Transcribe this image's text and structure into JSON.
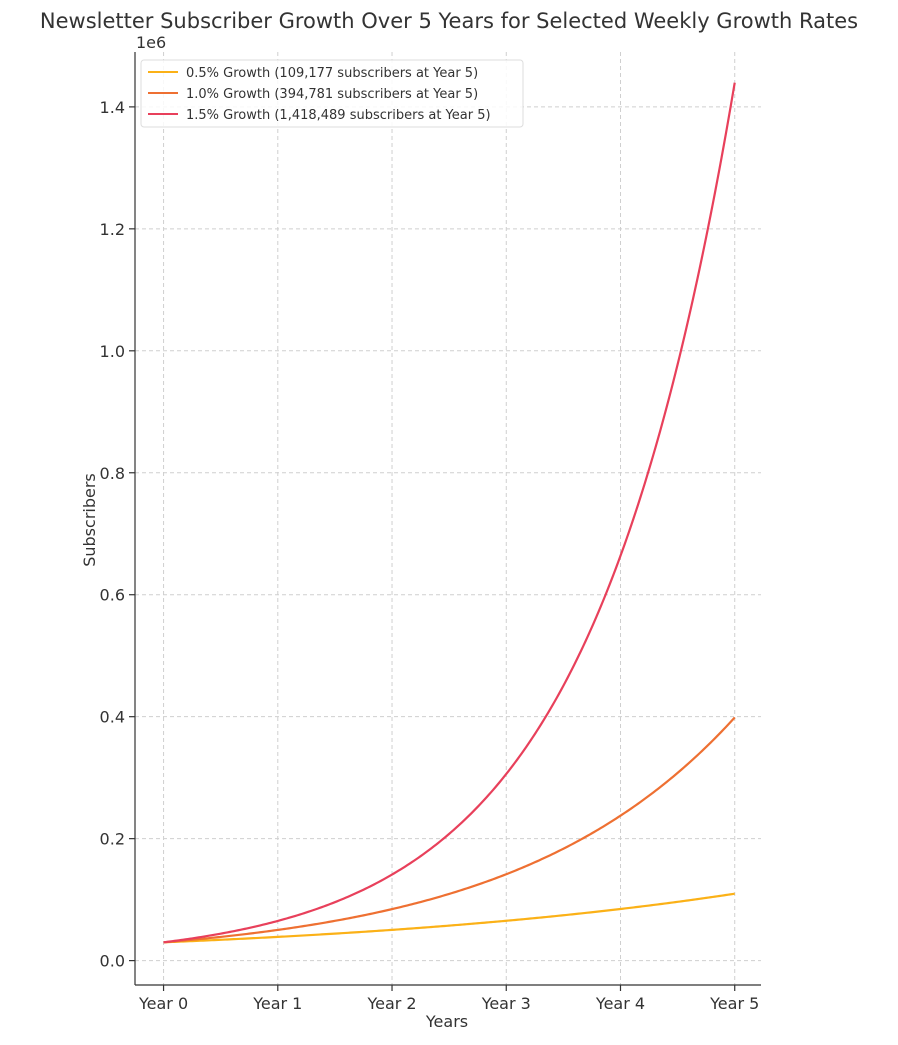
{
  "chart_data": {
    "type": "line",
    "title": "Newsletter Subscriber Growth Over 5 Years for Selected Weekly Growth Rates",
    "xlabel": "Years",
    "ylabel": "Subscribers",
    "y_offset_label": "1e6",
    "x_tick_labels": [
      "Year 0",
      "Year 1",
      "Year 2",
      "Year 3",
      "Year 4",
      "Year 5"
    ],
    "y_tick_labels": [
      "0.0",
      "0.2",
      "0.4",
      "0.6",
      "0.8",
      "1.0",
      "1.2",
      "1.4"
    ],
    "y_ticks": [
      0,
      200000,
      400000,
      600000,
      800000,
      1000000,
      1200000,
      1400000
    ],
    "xlim": [
      -0.25,
      5.23
    ],
    "ylim": [
      -40000,
      1490000
    ],
    "grid": true,
    "legend_position": "top-left",
    "x": [
      0,
      1,
      2,
      3,
      4,
      5
    ],
    "series": [
      {
        "name": "0.5% Growth (109,177 subscribers at Year 5)",
        "color": "#fbb117",
        "start": 30000,
        "weekly_rate": 0.005,
        "values": [
          30000,
          38918,
          50487,
          65496,
          84966,
          109177
        ]
      },
      {
        "name": "1.0% Growth (394,781 subscribers at Year 5)",
        "color": "#ee7032",
        "start": 30000,
        "weekly_rate": 0.01,
        "values": [
          30000,
          50232,
          84108,
          140829,
          235808,
          394781
        ]
      },
      {
        "name": "1.5% Growth (1,418,489 subscribers at Year 5)",
        "color": "#e8405b",
        "start": 30000,
        "weekly_rate": 0.015,
        "values": [
          30000,
          65148,
          141478,
          307238,
          667156,
          1418489
        ]
      }
    ]
  }
}
